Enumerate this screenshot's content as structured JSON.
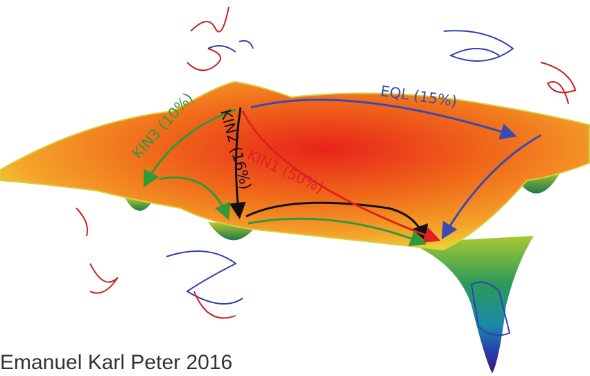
{
  "labels": {
    "kin3": "KIN3 (10%)",
    "kin2": "KIN2 (16%)",
    "kin1": "KIN1 (50%)",
    "eql": "EQL (15%)"
  },
  "credit": "Emanuel Karl Peter 2016"
}
